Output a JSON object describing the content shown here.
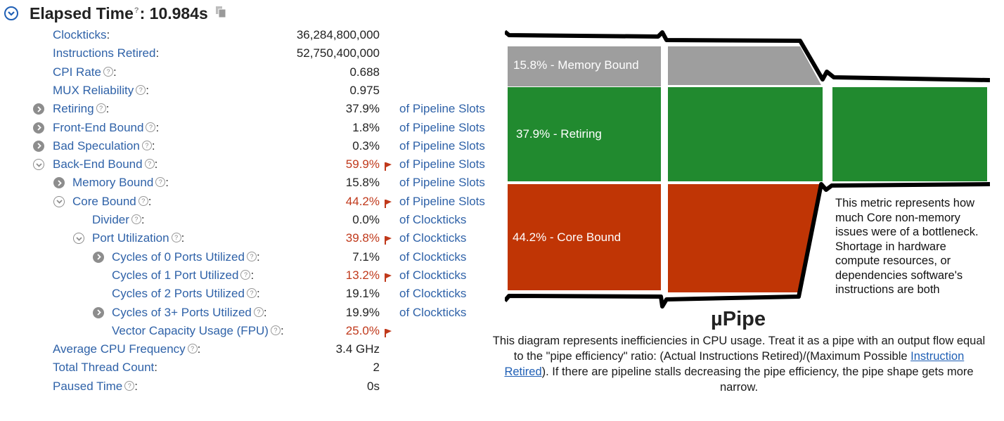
{
  "header": {
    "title_label": "Elapsed Time",
    "title_colon": ":",
    "title_value": "10.984s",
    "help_glyph": "?"
  },
  "metrics": [
    {
      "label": "Clockticks",
      "value": "36,284,800,000",
      "unit": "",
      "help": false,
      "hot": false,
      "indent": 0,
      "expander": "none"
    },
    {
      "label": "Instructions Retired",
      "value": "52,750,400,000",
      "unit": "",
      "help": false,
      "hot": false,
      "indent": 0,
      "expander": "none"
    },
    {
      "label": "CPI Rate",
      "value": "0.688",
      "unit": "",
      "help": true,
      "hot": false,
      "indent": 0,
      "expander": "none"
    },
    {
      "label": "MUX Reliability",
      "value": "0.975",
      "unit": "",
      "help": true,
      "hot": false,
      "indent": 0,
      "expander": "none"
    },
    {
      "label": "Retiring",
      "value": "37.9%",
      "unit": "of Pipeline Slots",
      "help": true,
      "hot": false,
      "indent": 0,
      "expander": "closed"
    },
    {
      "label": "Front-End Bound",
      "value": "1.8%",
      "unit": "of Pipeline Slots",
      "help": true,
      "hot": false,
      "indent": 0,
      "expander": "closed"
    },
    {
      "label": "Bad Speculation",
      "value": "0.3%",
      "unit": "of Pipeline Slots",
      "help": true,
      "hot": false,
      "indent": 0,
      "expander": "closed"
    },
    {
      "label": "Back-End Bound",
      "value": "59.9%",
      "unit": "of Pipeline Slots",
      "help": true,
      "hot": true,
      "indent": 0,
      "expander": "open"
    },
    {
      "label": "Memory Bound",
      "value": "15.8%",
      "unit": "of Pipeline Slots",
      "help": true,
      "hot": false,
      "indent": 1,
      "expander": "closed"
    },
    {
      "label": "Core Bound",
      "value": "44.2%",
      "unit": "of Pipeline Slots",
      "help": true,
      "hot": true,
      "indent": 1,
      "expander": "open"
    },
    {
      "label": "Divider",
      "value": "0.0%",
      "unit": "of Clockticks",
      "help": true,
      "hot": false,
      "indent": 2,
      "expander": "none"
    },
    {
      "label": "Port Utilization",
      "value": "39.8%",
      "unit": "of Clockticks",
      "help": true,
      "hot": true,
      "indent": 2,
      "expander": "open"
    },
    {
      "label": "Cycles of 0 Ports Utilized",
      "value": "7.1%",
      "unit": "of Clockticks",
      "help": true,
      "hot": false,
      "indent": 3,
      "expander": "closed"
    },
    {
      "label": "Cycles of 1 Port Utilized",
      "value": "13.2%",
      "unit": "of Clockticks",
      "help": true,
      "hot": true,
      "indent": 3,
      "expander": "none"
    },
    {
      "label": "Cycles of 2 Ports Utilized",
      "value": "19.1%",
      "unit": "of Clockticks",
      "help": true,
      "hot": false,
      "indent": 3,
      "expander": "none"
    },
    {
      "label": "Cycles of 3+ Ports Utilized",
      "value": "19.9%",
      "unit": "of Clockticks",
      "help": true,
      "hot": false,
      "indent": 3,
      "expander": "closed"
    },
    {
      "label": "Vector Capacity Usage (FPU)",
      "value": "25.0%",
      "unit": "",
      "help": true,
      "hot": true,
      "indent": 3,
      "expander": "none"
    },
    {
      "label": "Average CPU Frequency",
      "value": "3.4 GHz",
      "unit": "",
      "help": true,
      "hot": false,
      "indent": 0,
      "expander": "none"
    },
    {
      "label": "Total Thread Count",
      "value": "2",
      "unit": "",
      "help": false,
      "hot": false,
      "indent": 0,
      "expander": "none"
    },
    {
      "label": "Paused Time",
      "value": "0s",
      "unit": "",
      "help": true,
      "hot": false,
      "indent": 0,
      "expander": "none"
    }
  ],
  "pipe": {
    "memory_label": "15.8% - Memory Bound",
    "retiring_label": "37.9% - Retiring",
    "core_label": "44.2% - Core Bound",
    "colors": {
      "memory": "#9e9e9e",
      "retiring": "#218a2f",
      "core": "#c03505",
      "outline": "#000000"
    },
    "tooltip": "This metric represents how much Core non-memory issues were of a bottleneck. Shortage in hardware compute resources, or dependencies software's instructions are both"
  },
  "upipe": {
    "title": "µPipe",
    "desc_before": "This diagram represents inefficiencies in CPU usage. Treat it as a pipe with an output flow equal to the \"pipe efficiency\" ratio: (Actual Instructions Retired)/(Maximum Possible ",
    "desc_link": "Instruction Retired",
    "desc_after": "). If there are pipeline stalls decreasing the pipe efficiency, the pipe shape gets more narrow."
  },
  "colors": {
    "link": "#2f62a8",
    "hot": "#c0391b",
    "accent": "#1f5fb5"
  }
}
